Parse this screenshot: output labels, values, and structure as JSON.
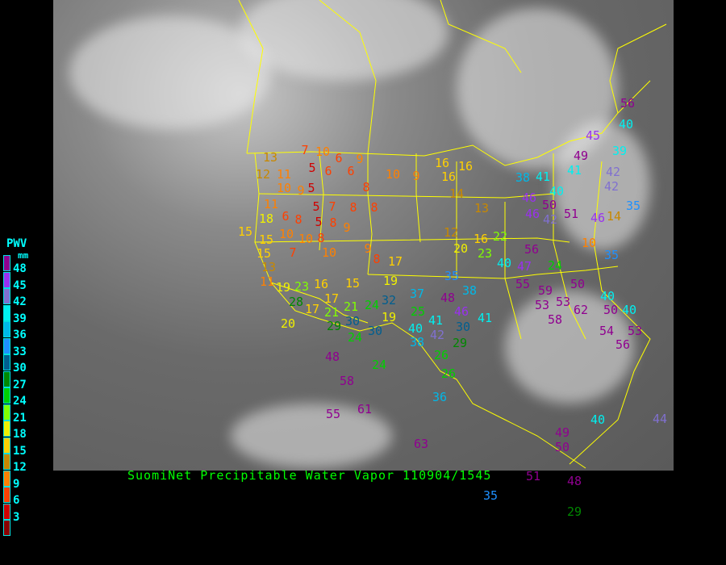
{
  "title": "SuomiNet Precipitable Water Vapor 110904/1545",
  "legend": {
    "title": "PWV",
    "unit": "mm",
    "ticks": [
      "48",
      "45",
      "42",
      "39",
      "36",
      "33",
      "30",
      "27",
      "24",
      "21",
      "18",
      "15",
      "12",
      "9",
      "6",
      "3"
    ],
    "colors": [
      "#900090",
      "#9a30f0",
      "#8070d0",
      "#00f0f0",
      "#00b8e8",
      "#1e90ff",
      "#005f90",
      "#008800",
      "#00d000",
      "#80ff00",
      "#f0f000",
      "#ffd000",
      "#c88800",
      "#ff8000",
      "#ff4000",
      "#d00000",
      "#8b0000"
    ]
  },
  "colors": {
    "background": "#000000",
    "borders": "#ffff00",
    "title": "#00ff00",
    "legend_text": "#00ffff"
  },
  "stations": [
    "13",
    "7",
    "10",
    "6",
    "9",
    "12",
    "11",
    "10",
    "9",
    "5",
    "5",
    "6",
    "6",
    "8",
    "10",
    "9",
    "16",
    "16",
    "16",
    "11",
    "18",
    "6",
    "8",
    "5",
    "7",
    "5",
    "8",
    "8",
    "8",
    "15",
    "15",
    "10",
    "10",
    "8",
    "9",
    "15",
    "13",
    "7",
    "11",
    "10",
    "9",
    "8",
    "17",
    "12",
    "20",
    "16",
    "23",
    "22",
    "19",
    "23",
    "16",
    "15",
    "19",
    "17",
    "21",
    "24",
    "32",
    "37",
    "25",
    "28",
    "17",
    "21",
    "30",
    "29",
    "24",
    "30",
    "19",
    "40",
    "41",
    "42",
    "38",
    "30",
    "29",
    "20",
    "35",
    "38",
    "48",
    "46",
    "41",
    "40",
    "55",
    "59",
    "53",
    "53",
    "62",
    "58",
    "50",
    "54",
    "53",
    "56",
    "26",
    "26",
    "36",
    "24",
    "48",
    "58",
    "55",
    "61",
    "63",
    "35",
    "51",
    "48",
    "29",
    "49",
    "50",
    "40",
    "44",
    "56",
    "40",
    "40",
    "35",
    "45",
    "49",
    "39",
    "42",
    "38",
    "41",
    "40",
    "42",
    "46",
    "42",
    "46",
    "46",
    "50",
    "51",
    "41",
    "56",
    "47",
    "24",
    "50",
    "40",
    "35",
    "14",
    "10",
    "14",
    "13"
  ]
}
